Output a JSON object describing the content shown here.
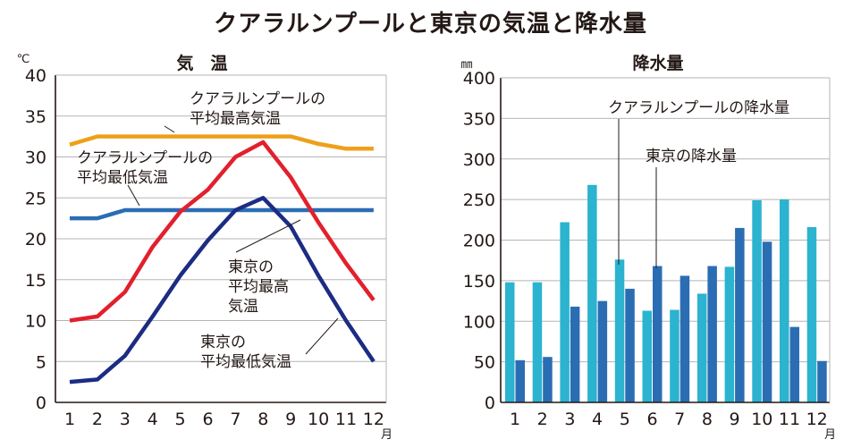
{
  "title": "クアラルンプールと東京の気温と降水量",
  "chart_data": [
    {
      "type": "line",
      "title": "気　温",
      "ylabel": "℃",
      "xlabel": "月",
      "ylim": [
        0,
        40
      ],
      "yticks": [
        0,
        5,
        10,
        15,
        20,
        25,
        30,
        35,
        40
      ],
      "grid": true,
      "categories": [
        "1",
        "2",
        "3",
        "4",
        "5",
        "6",
        "7",
        "8",
        "9",
        "10",
        "11",
        "12"
      ],
      "series": [
        {
          "name": "クアラルンプールの平均最高気温",
          "color": "#eea01a",
          "values": [
            31.5,
            32.5,
            32.5,
            32.5,
            32.5,
            32.5,
            32.5,
            32.5,
            32.5,
            31.6,
            31.0,
            31.0
          ]
        },
        {
          "name": "クアラルンプールの平均最低気温",
          "color": "#2b6db3",
          "values": [
            22.5,
            22.5,
            23.5,
            23.5,
            23.5,
            23.5,
            23.5,
            23.5,
            23.5,
            23.5,
            23.5,
            23.5
          ]
        },
        {
          "name": "東京の平均最高気温",
          "color": "#e2202c",
          "values": [
            10.0,
            10.5,
            13.5,
            19.0,
            23.3,
            26.0,
            30.0,
            31.8,
            27.5,
            22.0,
            17.0,
            12.5
          ]
        },
        {
          "name": "東京の平均最低気温",
          "color": "#1c2c83",
          "values": [
            2.5,
            2.8,
            5.7,
            10.5,
            15.5,
            19.8,
            23.5,
            25.0,
            21.5,
            15.5,
            10.0,
            5.0
          ]
        }
      ],
      "annotations": [
        {
          "lines": [
            "クアラルンプールの",
            "平均最高気温"
          ]
        },
        {
          "lines": [
            "クアラルンプールの",
            "平均最低気温"
          ]
        },
        {
          "lines": [
            "東京の",
            "平均最高",
            "気温"
          ]
        },
        {
          "lines": [
            "東京の",
            "平均最低気温"
          ]
        }
      ]
    },
    {
      "type": "bar",
      "title": "降水量",
      "ylabel": "㎜",
      "xlabel": "月",
      "ylim": [
        0,
        400
      ],
      "yticks": [
        0,
        50,
        100,
        150,
        200,
        250,
        300,
        350,
        400
      ],
      "grid": true,
      "categories": [
        "1",
        "2",
        "3",
        "4",
        "5",
        "6",
        "7",
        "8",
        "9",
        "10",
        "11",
        "12"
      ],
      "series": [
        {
          "name": "クアラルンプールの降水量",
          "color": "#2bb3cf",
          "values": [
            148,
            148,
            222,
            268,
            176,
            113,
            114,
            134,
            167,
            249,
            250,
            216
          ]
        },
        {
          "name": "東京の降水量",
          "color": "#2b6db3",
          "values": [
            52,
            56,
            118,
            125,
            140,
            168,
            156,
            168,
            215,
            198,
            93,
            51
          ]
        }
      ],
      "annotations": [
        {
          "lines": [
            "クアラルンプールの降水量"
          ]
        },
        {
          "lines": [
            "東京の降水量"
          ]
        }
      ]
    }
  ]
}
